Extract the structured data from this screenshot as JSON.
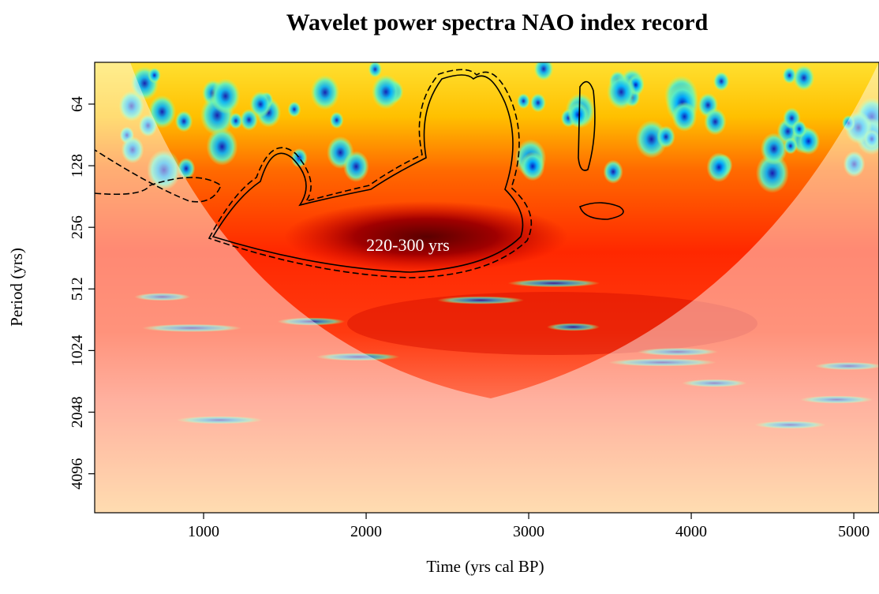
{
  "chart_data": {
    "type": "heatmap",
    "title": "Wavelet power spectra NAO index record",
    "xlabel": "Time (yrs cal BP)",
    "ylabel": "Period (yrs)",
    "annotation": "220-300 yrs",
    "xlim": [
      330,
      5155
    ],
    "xticks": [
      1000,
      2000,
      3000,
      4000,
      5000
    ],
    "ylim": [
      40,
      6350
    ],
    "yticks": [
      64,
      128,
      256,
      512,
      1024,
      2048,
      4096
    ],
    "y_log_base": 2,
    "y_reversed": true
  }
}
